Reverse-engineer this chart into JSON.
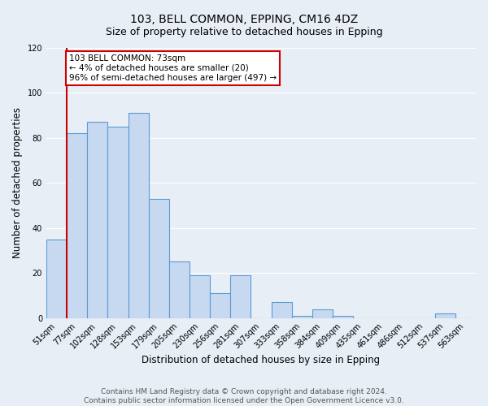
{
  "title": "103, BELL COMMON, EPPING, CM16 4DZ",
  "subtitle": "Size of property relative to detached houses in Epping",
  "xlabel": "Distribution of detached houses by size in Epping",
  "ylabel": "Number of detached properties",
  "bin_labels": [
    "51sqm",
    "77sqm",
    "102sqm",
    "128sqm",
    "153sqm",
    "179sqm",
    "205sqm",
    "230sqm",
    "256sqm",
    "281sqm",
    "307sqm",
    "333sqm",
    "358sqm",
    "384sqm",
    "409sqm",
    "435sqm",
    "461sqm",
    "486sqm",
    "512sqm",
    "537sqm",
    "563sqm"
  ],
  "bar_heights": [
    35,
    82,
    87,
    85,
    91,
    53,
    25,
    19,
    11,
    19,
    0,
    7,
    1,
    4,
    1,
    0,
    0,
    0,
    0,
    2,
    0
  ],
  "bar_color": "#c6d9f0",
  "bar_edge_color": "#5b9bd5",
  "subject_line_color": "#cc0000",
  "annotation_text": "103 BELL COMMON: 73sqm\n← 4% of detached houses are smaller (20)\n96% of semi-detached houses are larger (497) →",
  "annotation_box_color": "#cc0000",
  "annotation_fill": "#ffffff",
  "ylim": [
    0,
    120
  ],
  "yticks": [
    0,
    20,
    40,
    60,
    80,
    100,
    120
  ],
  "footer_text": "Contains HM Land Registry data © Crown copyright and database right 2024.\nContains public sector information licensed under the Open Government Licence v3.0.",
  "bg_color": "#e8eef5",
  "plot_bg_color": "#e8eef5",
  "grid_color": "#ffffff",
  "title_fontsize": 10,
  "subtitle_fontsize": 9,
  "axis_label_fontsize": 8.5,
  "tick_fontsize": 7,
  "footer_fontsize": 6.5
}
